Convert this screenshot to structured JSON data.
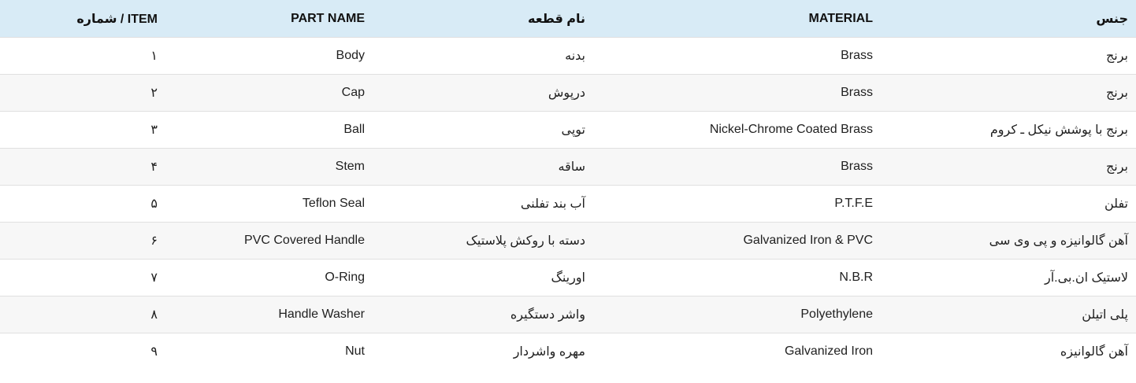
{
  "table": {
    "colors": {
      "header_bg": "#d8ebf6",
      "row_alt_bg": "#f7f7f7",
      "divider": "#e0e0e0",
      "text": "#212121",
      "header_text": "#111111"
    },
    "columns": [
      {
        "key": "item",
        "label": "شماره / ITEM"
      },
      {
        "key": "part_name",
        "label": "PART NAME"
      },
      {
        "key": "part_name_fa",
        "label": "نام قطعه"
      },
      {
        "key": "material",
        "label": "MATERIAL"
      },
      {
        "key": "material_fa",
        "label": "جنس"
      }
    ],
    "rows": [
      {
        "item": "۱",
        "part_name": "Body",
        "part_name_fa": "بدنه",
        "material": "Brass",
        "material_fa": "برنج"
      },
      {
        "item": "۲",
        "part_name": "Cap",
        "part_name_fa": "درپوش",
        "material": "Brass",
        "material_fa": "برنج"
      },
      {
        "item": "۳",
        "part_name": "Ball",
        "part_name_fa": "توپی",
        "material": "Nickel-Chrome Coated Brass",
        "material_fa": "برنج با پوشش نیکل ـ کروم"
      },
      {
        "item": "۴",
        "part_name": "Stem",
        "part_name_fa": "ساقه",
        "material": "Brass",
        "material_fa": "برنج"
      },
      {
        "item": "۵",
        "part_name": "Teflon Seal",
        "part_name_fa": "آب بند تفلنی",
        "material": "P.T.F.E",
        "material_fa": "تفلن"
      },
      {
        "item": "۶",
        "part_name": "PVC Covered Handle",
        "part_name_fa": "دسته با روکش پلاستیک",
        "material": "Galvanized Iron & PVC",
        "material_fa": "آهن گالوانیزه و پی وی سی"
      },
      {
        "item": "۷",
        "part_name": "O-Ring",
        "part_name_fa": "اورینگ",
        "material": "N.B.R",
        "material_fa": "لاستیک ان.بی.آر"
      },
      {
        "item": "۸",
        "part_name": "Handle Washer",
        "part_name_fa": "واشر دستگیره",
        "material": "Polyethylene",
        "material_fa": "پلی اتیلن"
      },
      {
        "item": "۹",
        "part_name": "Nut",
        "part_name_fa": "مهره واشردار",
        "material": "Galvanized Iron",
        "material_fa": "آهن گالوانیزه"
      }
    ]
  }
}
